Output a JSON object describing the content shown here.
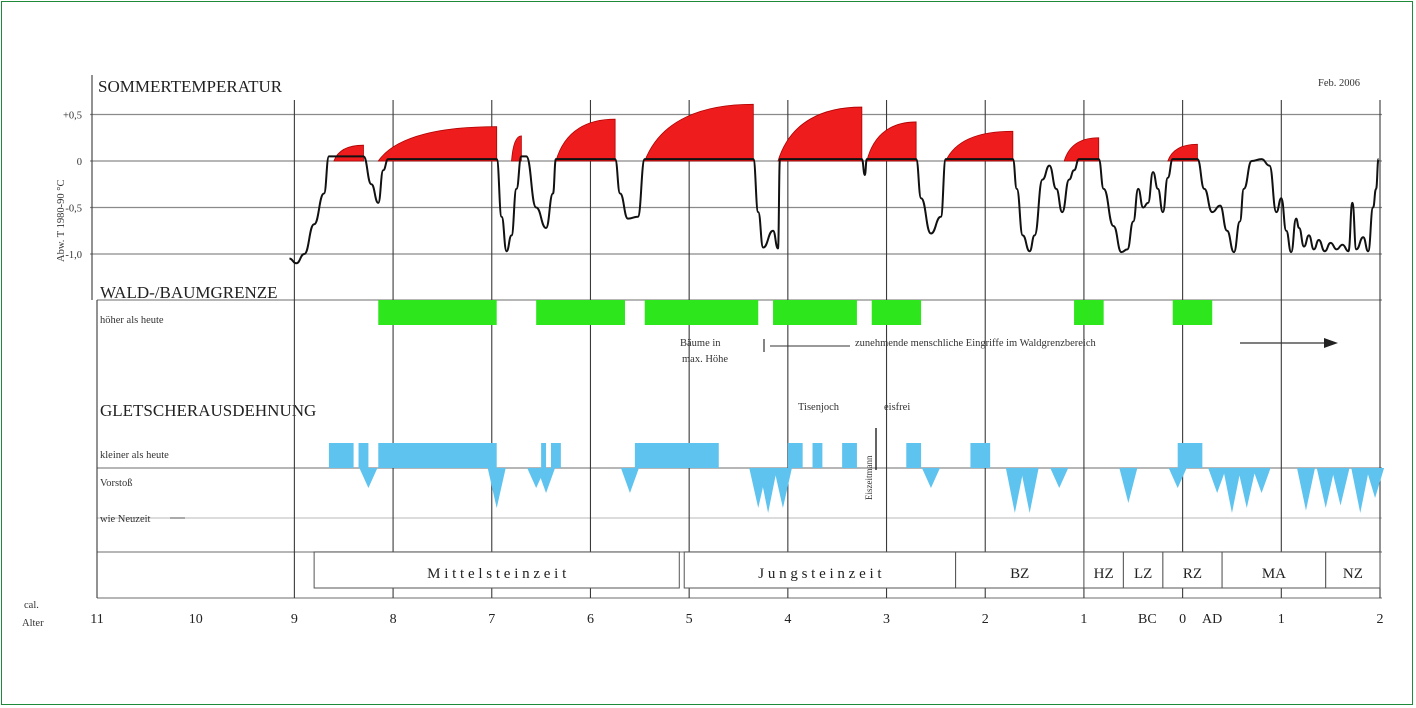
{
  "header": {
    "sommer": "SOMMERTEMPERATUR",
    "date": "Feb. 2006",
    "wald": "WALD-/BAUMGRENZE",
    "gletscher": "GLETSCHERAUSDEHNUNG"
  },
  "colors": {
    "warm": "#ee1c1c",
    "forest": "#2ee61c",
    "glacier": "#5ec3ee",
    "frame": "#1f8a3a"
  },
  "chart_data": {
    "type": "area",
    "ylabel": "Abw. T 1980-90 °C",
    "yticks": [
      {
        "label": "+0,5",
        "value": 0.5
      },
      {
        "label": "0",
        "value": 0
      },
      {
        "label": "-0,5",
        "value": -0.5
      },
      {
        "label": "-1,0",
        "value": -1.0
      }
    ],
    "ylim": [
      -1.1,
      0.6
    ],
    "xticks": [
      {
        "label": "11",
        "age": 11000
      },
      {
        "label": "10",
        "age": 10000
      },
      {
        "label": "9",
        "age": 9000
      },
      {
        "label": "8",
        "age": 8000
      },
      {
        "label": "7",
        "age": 7000
      },
      {
        "label": "6",
        "age": 6000
      },
      {
        "label": "5",
        "age": 5000
      },
      {
        "label": "4",
        "age": 4000
      },
      {
        "label": "3",
        "age": 3000
      },
      {
        "label": "2",
        "age": 2000
      },
      {
        "label": "1",
        "age": 1000
      },
      {
        "label": "0",
        "age": 0
      },
      {
        "label": "1",
        "age": -1000
      },
      {
        "label": "2",
        "age": -2000
      }
    ],
    "xaxis": {
      "label1": "cal.",
      "label2": "Alter",
      "bc": "BC",
      "ad": "AD"
    },
    "temperature": {
      "warm_phases": [
        {
          "start": 8600,
          "end": 8300,
          "peak": 0.17
        },
        {
          "start": 8150,
          "end": 6950,
          "peak": 0.37
        },
        {
          "start": 6800,
          "end": 6700,
          "peak": 0.27
        },
        {
          "start": 6350,
          "end": 5750,
          "peak": 0.45
        },
        {
          "start": 5450,
          "end": 4350,
          "peak": 0.61
        },
        {
          "start": 4100,
          "end": 3250,
          "peak": 0.58
        },
        {
          "start": 3200,
          "end": 2700,
          "peak": 0.42
        },
        {
          "start": 2400,
          "end": 1720,
          "peak": 0.32
        },
        {
          "start": 1200,
          "end": 850,
          "peak": 0.25
        },
        {
          "start": 150,
          "end": -150,
          "peak": 0.18
        }
      ],
      "curve": [
        [
          9050,
          -1.05
        ],
        [
          8980,
          -1.1
        ],
        [
          8900,
          -1.0
        ],
        [
          8800,
          -0.68
        ],
        [
          8700,
          -0.35
        ],
        [
          8650,
          0.05
        ],
        [
          8300,
          0.05
        ],
        [
          8220,
          -0.25
        ],
        [
          8150,
          -0.45
        ],
        [
          8100,
          -0.1
        ],
        [
          8050,
          0.02
        ],
        [
          6950,
          0.02
        ],
        [
          6900,
          -0.6
        ],
        [
          6850,
          -0.97
        ],
        [
          6800,
          -0.8
        ],
        [
          6750,
          -0.3
        ],
        [
          6700,
          0.05
        ],
        [
          6650,
          0.05
        ],
        [
          6550,
          -0.5
        ],
        [
          6450,
          -0.72
        ],
        [
          6380,
          -0.35
        ],
        [
          6350,
          0.02
        ],
        [
          5750,
          0.02
        ],
        [
          5700,
          -0.35
        ],
        [
          5620,
          -0.62
        ],
        [
          5520,
          -0.6
        ],
        [
          5450,
          0.02
        ],
        [
          4350,
          0.02
        ],
        [
          4300,
          -0.55
        ],
        [
          4250,
          -0.93
        ],
        [
          4150,
          -0.75
        ],
        [
          4100,
          -0.94
        ],
        [
          4080,
          0.02
        ],
        [
          3250,
          0.02
        ],
        [
          3220,
          -0.15
        ],
        [
          3200,
          0.02
        ],
        [
          2700,
          0.02
        ],
        [
          2650,
          -0.4
        ],
        [
          2550,
          -0.78
        ],
        [
          2450,
          -0.6
        ],
        [
          2400,
          0.02
        ],
        [
          1720,
          0.02
        ],
        [
          1680,
          -0.3
        ],
        [
          1620,
          -0.8
        ],
        [
          1550,
          -0.97
        ],
        [
          1500,
          -0.8
        ],
        [
          1420,
          -0.2
        ],
        [
          1350,
          -0.05
        ],
        [
          1280,
          -0.3
        ],
        [
          1220,
          -0.55
        ],
        [
          1150,
          -0.2
        ],
        [
          1100,
          -0.1
        ],
        [
          1050,
          0.02
        ],
        [
          850,
          0.02
        ],
        [
          800,
          -0.3
        ],
        [
          700,
          -0.7
        ],
        [
          620,
          -0.98
        ],
        [
          560,
          -0.95
        ],
        [
          500,
          -0.65
        ],
        [
          450,
          -0.3
        ],
        [
          400,
          -0.5
        ],
        [
          350,
          -0.45
        ],
        [
          300,
          -0.12
        ],
        [
          250,
          -0.3
        ],
        [
          200,
          -0.55
        ],
        [
          150,
          -0.18
        ],
        [
          100,
          0.02
        ],
        [
          -150,
          0.02
        ],
        [
          -220,
          -0.3
        ],
        [
          -300,
          -0.55
        ],
        [
          -380,
          -0.48
        ],
        [
          -450,
          -0.75
        ],
        [
          -520,
          -0.98
        ],
        [
          -580,
          -0.65
        ],
        [
          -620,
          -0.3
        ],
        [
          -700,
          0.0
        ],
        [
          -800,
          0.02
        ],
        [
          -880,
          -0.05
        ],
        [
          -950,
          -0.55
        ],
        [
          -1000,
          -0.4
        ],
        [
          -1050,
          -0.75
        ],
        [
          -1100,
          -0.98
        ],
        [
          -1150,
          -0.62
        ],
        [
          -1180,
          -0.72
        ],
        [
          -1230,
          -0.92
        ],
        [
          -1280,
          -0.8
        ],
        [
          -1330,
          -0.95
        ],
        [
          -1380,
          -0.85
        ],
        [
          -1440,
          -0.97
        ],
        [
          -1500,
          -0.88
        ],
        [
          -1560,
          -0.95
        ],
        [
          -1620,
          -0.9
        ],
        [
          -1680,
          -0.97
        ],
        [
          -1720,
          -0.45
        ],
        [
          -1760,
          -0.95
        ],
        [
          -1830,
          -0.82
        ],
        [
          -1880,
          -0.97
        ],
        [
          -1930,
          -0.5
        ],
        [
          -1960,
          -0.3
        ],
        [
          -1985,
          0.02
        ]
      ]
    },
    "treeline": {
      "row_label": "höher als heute",
      "periods": [
        [
          8150,
          6950
        ],
        [
          6550,
          5650
        ],
        [
          5450,
          4300
        ],
        [
          4150,
          3300
        ],
        [
          3150,
          2650
        ],
        [
          1100,
          800
        ],
        [
          100,
          -300
        ]
      ],
      "note1a": "Bäume in",
      "note1b": "max. Höhe",
      "note2": "zunehmende menschliche Eingriffe im Waldgrenzbereich"
    },
    "glacier": {
      "row_smaller": "kleiner als heute",
      "row_advance": "Vorstoß",
      "row_modern": "wie Neuzeit",
      "smaller_periods": [
        [
          8650,
          8400
        ],
        [
          8350,
          8250
        ],
        [
          8150,
          6950
        ],
        [
          6500,
          6450
        ],
        [
          6400,
          6300
        ],
        [
          5550,
          4700
        ],
        [
          4000,
          3850
        ],
        [
          3750,
          3650
        ],
        [
          3450,
          3300
        ],
        [
          2800,
          2650
        ],
        [
          2150,
          1950
        ],
        [
          50,
          -200
        ]
      ],
      "advances": [
        [
          8250,
          0.4
        ],
        [
          6950,
          0.8
        ],
        [
          6550,
          0.4
        ],
        [
          6450,
          0.5
        ],
        [
          5600,
          0.5
        ],
        [
          4300,
          0.8
        ],
        [
          4200,
          0.9
        ],
        [
          4050,
          0.8
        ],
        [
          2550,
          0.4
        ],
        [
          1700,
          0.9
        ],
        [
          1550,
          0.9
        ],
        [
          1250,
          0.4
        ],
        [
          550,
          0.7
        ],
        [
          50,
          0.4
        ],
        [
          -350,
          0.5
        ],
        [
          -500,
          0.9
        ],
        [
          -650,
          0.8
        ],
        [
          -800,
          0.5
        ],
        [
          -1250,
          0.85
        ],
        [
          -1450,
          0.8
        ],
        [
          -1600,
          0.75
        ],
        [
          -1800,
          0.9
        ],
        [
          -1950,
          0.6
        ]
      ],
      "label_tisenjoch": "Tisenjoch",
      "label_eisfrei": "eisfrei",
      "label_eiszeit": "Eiszeitmann"
    },
    "periods": [
      {
        "label": "M i t t e l s t e i n z e i t",
        "start": 8800,
        "end": 5100
      },
      {
        "label": "J u n g s t e i n z e i t",
        "start": 5050,
        "end": 2300
      },
      {
        "label": "BZ",
        "start": 2300,
        "end": 1000
      },
      {
        "label": "HZ",
        "start": 1000,
        "end": 600
      },
      {
        "label": "LZ",
        "start": 600,
        "end": 200
      },
      {
        "label": "RZ",
        "start": 200,
        "end": -400
      },
      {
        "label": "MA",
        "start": -400,
        "end": -1450
      },
      {
        "label": "NZ",
        "start": -1450,
        "end": -2000
      }
    ]
  }
}
